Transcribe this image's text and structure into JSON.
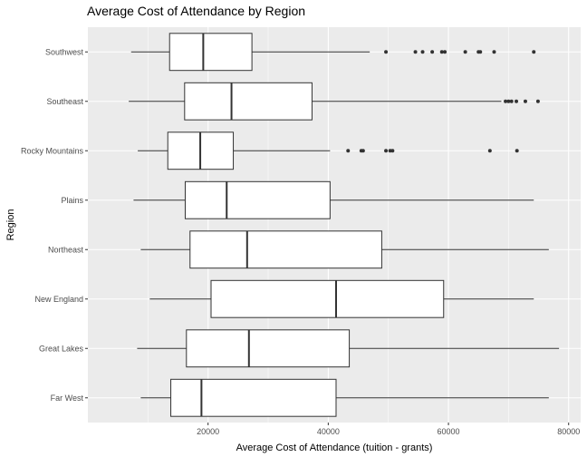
{
  "chart_data": {
    "type": "boxplot",
    "title": "Average Cost of Attendance by Region",
    "xlabel": "Average Cost of Attendance (tuition - grants)",
    "ylabel": "Region",
    "xlim": [
      0,
      82000
    ],
    "x_ticks": [
      20000,
      40000,
      60000,
      80000
    ],
    "x_tick_labels": [
      "20000",
      "40000",
      "60000",
      "80000"
    ],
    "grid": true,
    "categories": [
      "Far West",
      "Great Lakes",
      "New England",
      "Northeast",
      "Plains",
      "Rocky Mountains",
      "Southeast",
      "Southwest"
    ],
    "boxes": [
      {
        "category": "Far West",
        "min": 8800,
        "q1": 13800,
        "median": 18900,
        "q3": 41300,
        "max": 76700,
        "outliers": []
      },
      {
        "category": "Great Lakes",
        "min": 8200,
        "q1": 16400,
        "median": 26800,
        "q3": 43500,
        "max": 78400,
        "outliers": []
      },
      {
        "category": "New England",
        "min": 10300,
        "q1": 20500,
        "median": 41300,
        "q3": 59200,
        "max": 74200,
        "outliers": []
      },
      {
        "category": "Northeast",
        "min": 8800,
        "q1": 17000,
        "median": 26500,
        "q3": 48900,
        "max": 76700,
        "outliers": []
      },
      {
        "category": "Plains",
        "min": 7600,
        "q1": 16200,
        "median": 23100,
        "q3": 40300,
        "max": 74200,
        "outliers": []
      },
      {
        "category": "Rocky Mountains",
        "min": 8300,
        "q1": 13300,
        "median": 18700,
        "q3": 24200,
        "max": 40300,
        "outliers": [
          43300,
          45500,
          45800,
          49600,
          50300,
          50700,
          66900,
          71400
        ]
      },
      {
        "category": "Southeast",
        "min": 6800,
        "q1": 16100,
        "median": 23900,
        "q3": 37300,
        "max": 68800,
        "outliers": [
          69500,
          70000,
          70500,
          71300,
          72800,
          74900
        ]
      },
      {
        "category": "Southwest",
        "min": 7200,
        "q1": 13600,
        "median": 19200,
        "q3": 27300,
        "max": 46900,
        "outliers": [
          49600,
          54500,
          55700,
          57300,
          58900,
          59400,
          62800,
          65000,
          65300,
          67600,
          74200
        ]
      }
    ],
    "colors": {
      "panel_bg": "#EBEBEB",
      "grid_major": "#FFFFFF",
      "box_fill": "#FFFFFF",
      "line": "#333333",
      "tick_text": "#4D4D4D",
      "title_text": "#000000"
    }
  }
}
